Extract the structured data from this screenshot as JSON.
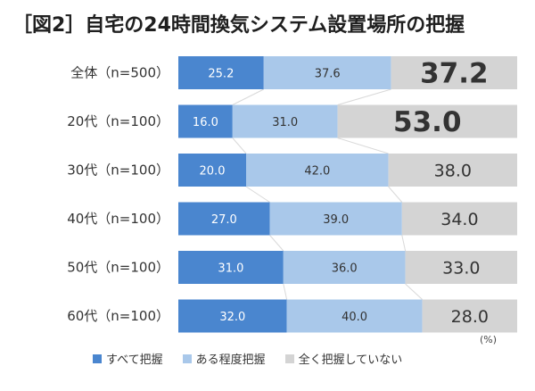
{
  "title": "［図2］自宅の24時間換気システム設置場所の把握",
  "unit": "(%)",
  "colors": {
    "series1": "#4a86cf",
    "series2": "#a9c8ea",
    "series3": "#d4d4d4",
    "connector": "#d9d9d9",
    "label_light": "#ffffff",
    "label_dark": "#333333"
  },
  "chart_data": {
    "type": "bar",
    "orientation": "horizontal",
    "stacked": true,
    "categories": [
      "全体（n=500）",
      "20代（n=100）",
      "30代（n=100）",
      "40代（n=100）",
      "50代（n=100）",
      "60代（n=100）"
    ],
    "series": [
      {
        "name": "すべて把握",
        "values": [
          25.2,
          16.0,
          20.0,
          27.0,
          31.0,
          32.0
        ],
        "labels": [
          "25.2",
          "16.0",
          "20.0",
          "27.0",
          "31.0",
          "32.0"
        ]
      },
      {
        "name": "ある程度把握",
        "values": [
          37.6,
          31.0,
          42.0,
          39.0,
          36.0,
          40.0
        ],
        "labels": [
          "37.6",
          "31.0",
          "42.0",
          "39.0",
          "36.0",
          "40.0"
        ]
      },
      {
        "name": "全く把握していない",
        "values": [
          37.2,
          53.0,
          38.0,
          34.0,
          33.0,
          28.0
        ],
        "labels": [
          "37.2",
          "53.0",
          "38.0",
          "34.0",
          "33.0",
          "28.0"
        ]
      }
    ],
    "emphasized_labels": [
      "37.2",
      "53.0"
    ],
    "xlim": [
      0,
      100
    ],
    "legend_position": "bottom",
    "grid": false
  }
}
